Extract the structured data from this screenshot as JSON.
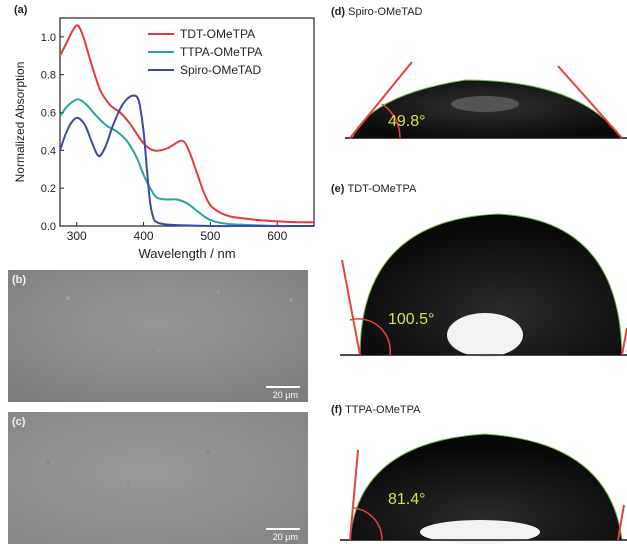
{
  "panels": {
    "a": {
      "letter": "(a)"
    },
    "b": {
      "letter": "(b)",
      "scale_bar": "20 μm"
    },
    "c": {
      "letter": "(c)",
      "scale_bar": "20 μm"
    },
    "d": {
      "letter": "(d)",
      "title": "Spiro-OMeTAD",
      "angle": "49.8°"
    },
    "e": {
      "letter": "(e)",
      "title": "TDT-OMeTPA",
      "angle": "100.5°"
    },
    "f": {
      "letter": "(f)",
      "title": "TTPA-OMeTPA",
      "angle": "81.4°"
    }
  },
  "colors": {
    "tdt": "#e8393a",
    "ttpa": "#2aa39a",
    "spiro": "#3a4aa6",
    "angle_text": "#d8e04a",
    "tangent": "#e84040"
  },
  "chart_data": {
    "type": "line",
    "title": "",
    "xlabel": "Wavelength / nm",
    "ylabel": "Normalized Absorption",
    "xlim": [
      275,
      655
    ],
    "ylim": [
      0,
      1.1
    ],
    "xticks": [
      300,
      400,
      500,
      600
    ],
    "yticks": [
      0.0,
      0.2,
      0.4,
      0.6,
      0.8,
      1.0
    ],
    "ytick_labels": [
      "0.0",
      "0.2",
      "0.4",
      "0.6",
      "0.8",
      "1.0"
    ],
    "legend_position": "top-right",
    "series": [
      {
        "name": "TDT-OMeTPA",
        "x": [
          275,
          285,
          295,
          302,
          310,
          320,
          335,
          350,
          365,
          380,
          395,
          405,
          415,
          425,
          435,
          445,
          455,
          462,
          470,
          480,
          490,
          500,
          515,
          530,
          550,
          575,
          600,
          630,
          655
        ],
        "y": [
          0.9,
          0.97,
          1.04,
          1.06,
          1.0,
          0.88,
          0.72,
          0.64,
          0.6,
          0.54,
          0.46,
          0.42,
          0.4,
          0.4,
          0.41,
          0.43,
          0.45,
          0.44,
          0.38,
          0.28,
          0.18,
          0.11,
          0.07,
          0.05,
          0.04,
          0.03,
          0.025,
          0.02,
          0.02
        ]
      },
      {
        "name": "TTPA-OMeTPA",
        "x": [
          275,
          285,
          295,
          303,
          315,
          330,
          345,
          360,
          375,
          390,
          400,
          410,
          420,
          435,
          450,
          465,
          480,
          495,
          510,
          530,
          560,
          600,
          655
        ],
        "y": [
          0.58,
          0.63,
          0.66,
          0.67,
          0.64,
          0.58,
          0.53,
          0.5,
          0.45,
          0.36,
          0.27,
          0.2,
          0.15,
          0.14,
          0.14,
          0.12,
          0.08,
          0.04,
          0.02,
          0.01,
          0.005,
          0.0,
          0.0
        ]
      },
      {
        "name": "Spiro-OMeTAD",
        "x": [
          275,
          285,
          295,
          303,
          313,
          323,
          333,
          343,
          353,
          365,
          375,
          385,
          393,
          400,
          405,
          410,
          415,
          420,
          430,
          450,
          500,
          560,
          655
        ],
        "y": [
          0.4,
          0.5,
          0.56,
          0.57,
          0.53,
          0.44,
          0.37,
          0.42,
          0.52,
          0.62,
          0.67,
          0.69,
          0.66,
          0.5,
          0.3,
          0.12,
          0.04,
          0.02,
          0.01,
          0.005,
          0.0,
          0.0,
          0.0
        ]
      }
    ]
  }
}
